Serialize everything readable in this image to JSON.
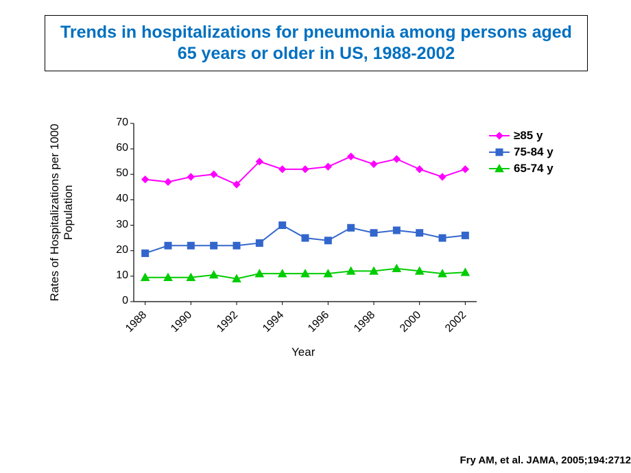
{
  "title": "Trends in hospitalizations for pneumonia among persons aged 65 years or older in US, 1988-2002",
  "title_color": "#0070c0",
  "title_fontsize": 25,
  "chart": {
    "type": "line",
    "background_color": "#ffffff",
    "plot_border_color": "#000000",
    "tick_color": "#000000",
    "axis_line_width": 1.2,
    "series_line_width": 2,
    "marker_size": 5,
    "xlabel": "Year",
    "ylabel": "Rates of Hospitalizations per 1000 Population",
    "label_fontsize": 17,
    "tick_fontsize": 16,
    "x_categories": [
      "1988",
      "1989",
      "1990",
      "1991",
      "1992",
      "1993",
      "1994",
      "1995",
      "1996",
      "1997",
      "1998",
      "1999",
      "2000",
      "2001",
      "2002"
    ],
    "x_tick_labels": [
      "1988",
      "1990",
      "1992",
      "1994",
      "1996",
      "1998",
      "2000",
      "2002"
    ],
    "x_tick_at": [
      0,
      2,
      4,
      6,
      8,
      10,
      12,
      14
    ],
    "ylim": [
      0,
      70
    ],
    "ytick_step": 10,
    "series": [
      {
        "name": "≥85 y",
        "color": "#ff00ff",
        "marker": "diamond",
        "values": [
          48,
          47,
          49,
          50,
          46,
          55,
          52,
          52,
          53,
          57,
          54,
          56,
          52,
          49,
          52
        ]
      },
      {
        "name": "75-84 y",
        "color": "#3366cc",
        "marker": "square",
        "values": [
          19,
          22,
          22,
          22,
          22,
          23,
          30,
          25,
          24,
          29,
          27,
          28,
          27,
          25,
          26
        ]
      },
      {
        "name": "65-74 y",
        "color": "#00cc00",
        "marker": "triangle",
        "values": [
          9.5,
          9.5,
          9.5,
          10.5,
          9,
          11,
          11,
          11,
          11,
          12,
          12,
          13,
          12,
          11,
          11.5
        ]
      }
    ],
    "legend": {
      "position": "right",
      "fontsize": 17,
      "font_weight": "bold"
    }
  },
  "citation": "Fry AM, et al. JAMA,  2005;194:2712",
  "citation_fontsize": 15
}
